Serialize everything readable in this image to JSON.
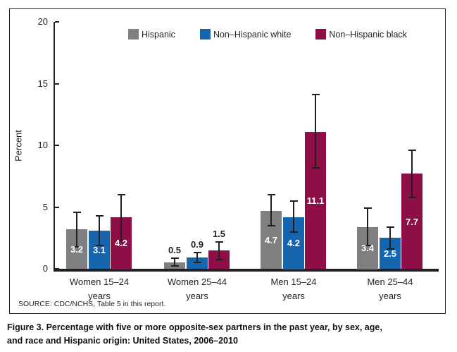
{
  "figure": {
    "source": "SOURCE: CDC/NCHS, Table 5 in this report.",
    "caption_line1": "Figure 3. Percentage with five or more opposite-sex partners in the past year, by sex, age,",
    "caption_line2": "and race and Hispanic origin: United States, 2006–2010"
  },
  "chart_data": {
    "type": "bar",
    "title": "Figure 3. Percentage with five or more opposite-sex partners in the past year, by sex, age, and race and Hispanic origin: United States, 2006–2010",
    "ylabel": "Percent",
    "xlabel": "",
    "ylim": [
      0,
      20
    ],
    "ytick_step": 5,
    "grid": false,
    "legend_position": "top",
    "error_bars": true,
    "categories": [
      "Women 15–24\nyears",
      "Women 25–44\nyears",
      "Men 15–24\nyears",
      "Men 25–44\nyears"
    ],
    "series": [
      {
        "name": "Hispanic",
        "color": "#7d7f81",
        "values": [
          3.2,
          0.5,
          4.7,
          3.4
        ],
        "err_low": [
          1.8,
          0.25,
          3.5,
          1.9
        ],
        "err_high": [
          4.6,
          0.85,
          6.0,
          4.9
        ]
      },
      {
        "name": "Non–Hispanic white",
        "color": "#1566ae",
        "values": [
          3.1,
          0.9,
          4.2,
          2.5
        ],
        "err_low": [
          1.9,
          0.5,
          3.0,
          1.6
        ],
        "err_high": [
          4.3,
          1.3,
          5.5,
          3.4
        ]
      },
      {
        "name": "Non–Hispanic black",
        "color": "#8e0f47",
        "values": [
          4.2,
          1.5,
          11.1,
          7.7
        ],
        "err_low": [
          2.3,
          0.75,
          8.2,
          5.8
        ],
        "err_high": [
          6.0,
          2.2,
          14.1,
          9.6
        ]
      }
    ],
    "value_label_color_inside": "#ffffff",
    "value_label_color_outside": "#231f20",
    "axis_color": "#231f20"
  }
}
